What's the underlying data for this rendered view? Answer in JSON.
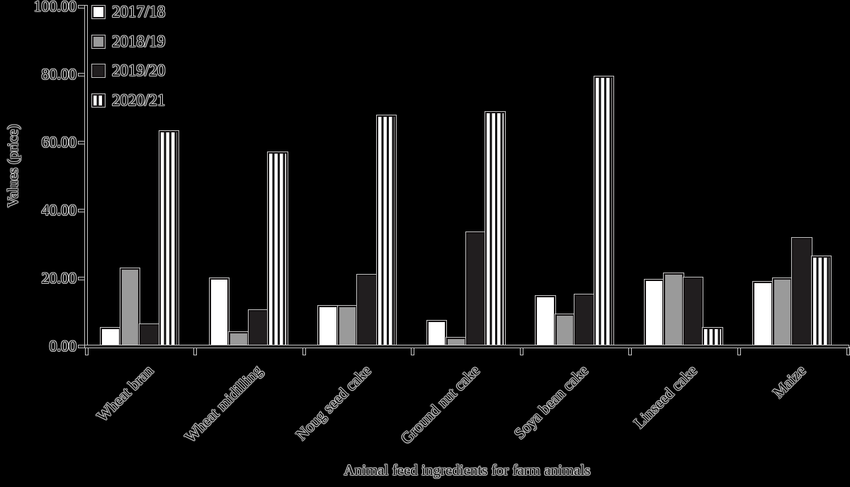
{
  "figure": {
    "background": "#000000",
    "halo_color": "#cfcfcf",
    "ink_color": "#060606"
  },
  "chart_data": {
    "type": "bar",
    "title": "",
    "xlabel": "Animal feed ingredients for farm animals",
    "ylabel": "Values (price)",
    "categories": [
      "Wheat bran",
      "Wheat midilling",
      "Noug seed cake",
      "Ground nut cake",
      "Soya bean cake",
      "Linseed cake",
      "Maize"
    ],
    "series": [
      {
        "name": "2017/18",
        "fill": "#ffffff",
        "pattern": "solid",
        "values": [
          5.5,
          20.0,
          11.8,
          7.4,
          14.8,
          19.6,
          19.0
        ]
      },
      {
        "name": "2018/19",
        "fill": "#9a9a9a",
        "pattern": "solid",
        "values": [
          23.0,
          4.2,
          11.8,
          2.5,
          9.4,
          21.5,
          20.0
        ]
      },
      {
        "name": "2019/20",
        "fill": "#211e1f",
        "pattern": "solid",
        "values": [
          6.5,
          10.7,
          21.0,
          33.5,
          15.2,
          20.2,
          31.8
        ]
      },
      {
        "name": "2020/21",
        "fill": "#ffffff",
        "pattern": "vertical-stripes",
        "stripe_color": "#0e0c0d",
        "values": [
          63.3,
          57.1,
          68.0,
          69.0,
          79.3,
          5.5,
          26.4
        ]
      }
    ],
    "ylim": [
      0,
      100
    ],
    "yticks": [
      {
        "value": 0,
        "label": "0.00"
      },
      {
        "value": 20,
        "label": "20.00"
      },
      {
        "value": 40,
        "label": "40.00"
      },
      {
        "value": 60,
        "label": "60.00"
      },
      {
        "value": 80,
        "label": "80.00"
      },
      {
        "value": 100,
        "label": "100.00"
      }
    ],
    "legend_position": "top-left",
    "grid": false,
    "bar_edge_color": "#151213"
  }
}
